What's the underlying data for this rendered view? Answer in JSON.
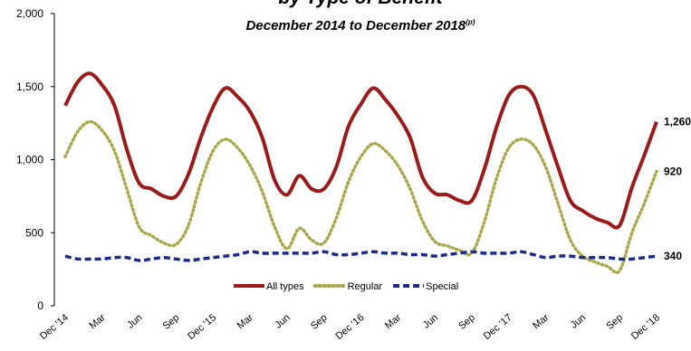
{
  "chart_data": {
    "type": "line",
    "title": "by Type of Benefit",
    "subtitle": "December 2014 to December 2018",
    "subtitle_note": "(p)",
    "categories": [
      "Dec '14",
      null,
      null,
      "Mar",
      null,
      null,
      "Jun",
      null,
      null,
      "Sep",
      null,
      null,
      "Dec '15",
      null,
      null,
      "Mar",
      null,
      null,
      "Jun",
      null,
      null,
      "Sep",
      null,
      null,
      "Dec '16",
      null,
      null,
      "Mar",
      null,
      null,
      "Jun",
      null,
      null,
      "Sep",
      null,
      null,
      "Dec '17",
      null,
      null,
      "Mar",
      null,
      null,
      "Jun",
      null,
      null,
      "Sep",
      null,
      null,
      "Dec '18"
    ],
    "series": [
      {
        "name": "All types",
        "color": "#9b1b1b",
        "dash": "solid",
        "values": [
          1370,
          1530,
          1590,
          1510,
          1370,
          1070,
          840,
          800,
          750,
          750,
          900,
          1150,
          1360,
          1490,
          1430,
          1330,
          1150,
          860,
          760,
          890,
          800,
          800,
          950,
          1230,
          1380,
          1490,
          1410,
          1300,
          1150,
          880,
          770,
          760,
          720,
          720,
          930,
          1220,
          1440,
          1500,
          1440,
          1200,
          950,
          720,
          650,
          600,
          570,
          550,
          810,
          1030,
          1260
        ],
        "value_labels": [
          null,
          null,
          null,
          null,
          null,
          null,
          null,
          null,
          null,
          null,
          null,
          null,
          null,
          null,
          null,
          null,
          null,
          null,
          null,
          null,
          null,
          null,
          null,
          null,
          null,
          null,
          null,
          null,
          null,
          null,
          null,
          null,
          null,
          null,
          null,
          null,
          null,
          null,
          null,
          null,
          null,
          null,
          null,
          null,
          null,
          null,
          null,
          null,
          "1,260"
        ]
      },
      {
        "name": "Regular",
        "color": "#a9a84b",
        "dash": "dotted",
        "values": [
          1020,
          1190,
          1260,
          1200,
          1060,
          800,
          540,
          480,
          430,
          420,
          550,
          840,
          1060,
          1140,
          1080,
          960,
          780,
          540,
          390,
          530,
          450,
          430,
          600,
          850,
          1020,
          1110,
          1060,
          960,
          800,
          580,
          440,
          410,
          380,
          360,
          570,
          870,
          1080,
          1140,
          1100,
          950,
          700,
          450,
          340,
          300,
          270,
          240,
          500,
          700,
          920
        ],
        "value_labels": [
          null,
          null,
          null,
          null,
          null,
          null,
          null,
          null,
          null,
          null,
          null,
          null,
          null,
          null,
          null,
          null,
          null,
          null,
          null,
          null,
          null,
          null,
          null,
          null,
          null,
          null,
          null,
          null,
          null,
          null,
          null,
          null,
          null,
          null,
          null,
          null,
          null,
          null,
          null,
          null,
          null,
          null,
          null,
          null,
          null,
          null,
          null,
          null,
          "920"
        ]
      },
      {
        "name": "Special",
        "color": "#1c2a8c",
        "dash": "dashed",
        "values": [
          340,
          320,
          320,
          320,
          330,
          330,
          310,
          320,
          330,
          320,
          310,
          320,
          330,
          340,
          350,
          370,
          360,
          360,
          360,
          360,
          360,
          370,
          350,
          350,
          360,
          370,
          360,
          360,
          350,
          350,
          340,
          350,
          360,
          370,
          360,
          360,
          360,
          370,
          350,
          330,
          340,
          340,
          330,
          330,
          330,
          320,
          320,
          330,
          340
        ],
        "value_labels": [
          null,
          null,
          null,
          null,
          null,
          null,
          null,
          null,
          null,
          null,
          null,
          null,
          null,
          null,
          null,
          null,
          null,
          null,
          null,
          null,
          null,
          null,
          null,
          null,
          null,
          null,
          null,
          null,
          null,
          null,
          null,
          null,
          null,
          null,
          null,
          null,
          null,
          null,
          null,
          null,
          null,
          null,
          null,
          null,
          null,
          null,
          null,
          null,
          "340"
        ]
      }
    ],
    "ylim": [
      0,
      2000
    ],
    "yticks": [
      0,
      500,
      {
        "value": 1000,
        "label": "1,000"
      },
      {
        "value": 1500,
        "label": "1,500"
      },
      {
        "value": 2000,
        "label": "2,000"
      }
    ],
    "grid": false,
    "legend": "bottom"
  }
}
